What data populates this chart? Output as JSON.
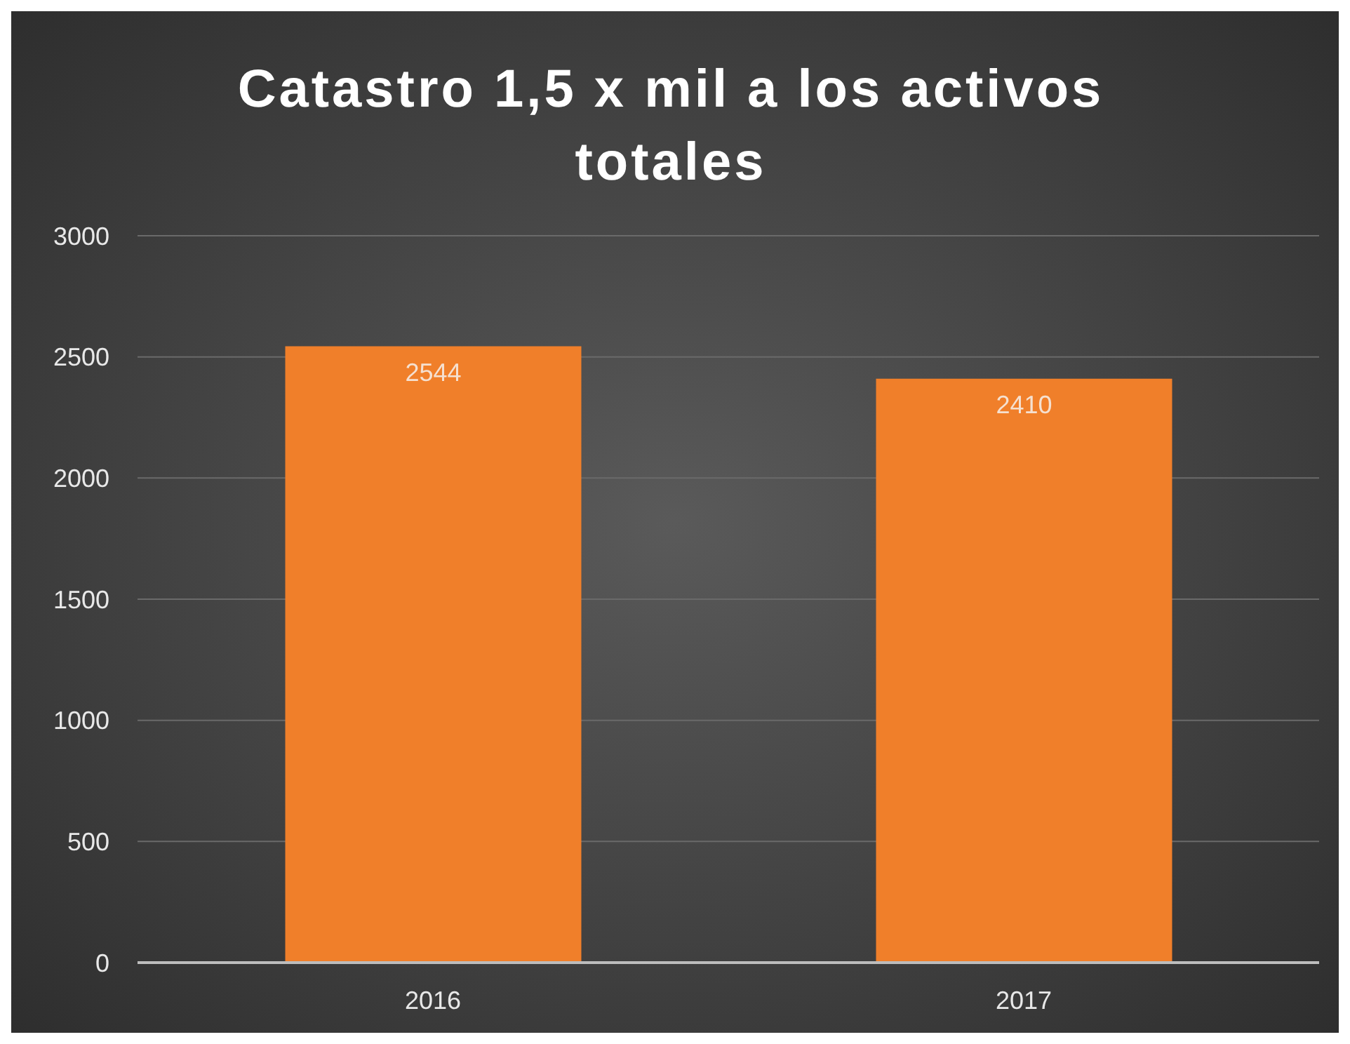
{
  "chart_data": {
    "type": "bar",
    "title": "Catastro 1,5 x mil a los activos totales",
    "categories": [
      "2016",
      "2017"
    ],
    "values": [
      2544,
      2410
    ],
    "color": "#f07f2a",
    "ylim": [
      0,
      3000
    ],
    "yticks": [
      0,
      500,
      1000,
      1500,
      2000,
      2500,
      3000
    ],
    "grid": "y",
    "data_labels": true
  }
}
